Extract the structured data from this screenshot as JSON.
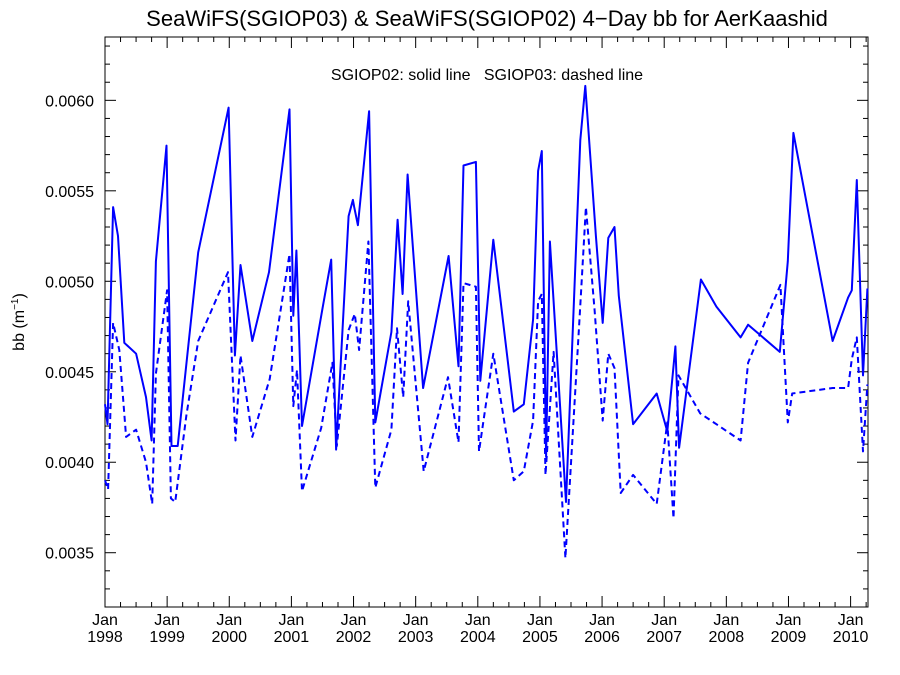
{
  "chart_data": {
    "type": "line",
    "title": "SeaWiFS(SGIOP03) & SeaWiFS(SGIOP02) 4−Day bb for AerKaashid",
    "annotation": "SGIOP02: solid line   SGIOP03: dashed line",
    "ylabel_main": "bb (m",
    "ylabel_sup": "−1",
    "ylabel_close": ")",
    "xlim": [
      1998.0,
      2010.28
    ],
    "ylim": [
      0.0032,
      0.00635
    ],
    "x_ticks": [
      {
        "value": 1998,
        "month": "Jan",
        "year": "1998"
      },
      {
        "value": 1999,
        "month": "Jan",
        "year": "1999"
      },
      {
        "value": 2000,
        "month": "Jan",
        "year": "2000"
      },
      {
        "value": 2001,
        "month": "Jan",
        "year": "2001"
      },
      {
        "value": 2002,
        "month": "Jan",
        "year": "2002"
      },
      {
        "value": 2003,
        "month": "Jan",
        "year": "2003"
      },
      {
        "value": 2004,
        "month": "Jan",
        "year": "2004"
      },
      {
        "value": 2005,
        "month": "Jan",
        "year": "2005"
      },
      {
        "value": 2006,
        "month": "Jan",
        "year": "2006"
      },
      {
        "value": 2007,
        "month": "Jan",
        "year": "2007"
      },
      {
        "value": 2008,
        "month": "Jan",
        "year": "2008"
      },
      {
        "value": 2009,
        "month": "Jan",
        "year": "2009"
      },
      {
        "value": 2010,
        "month": "Jan",
        "year": "2010"
      }
    ],
    "y_ticks": [
      {
        "value": 0.0035,
        "label": "0.0035"
      },
      {
        "value": 0.004,
        "label": "0.0040"
      },
      {
        "value": 0.0045,
        "label": "0.0045"
      },
      {
        "value": 0.005,
        "label": "0.0050"
      },
      {
        "value": 0.0055,
        "label": "0.0055"
      },
      {
        "value": 0.006,
        "label": "0.0060"
      }
    ],
    "line_color": "#0000ff",
    "series": [
      {
        "style": "solid",
        "x": [
          1998.0,
          1998.04,
          1998.13,
          1998.21,
          1998.31,
          1998.5,
          1998.66,
          1998.75,
          1998.82,
          1998.99,
          1999.07,
          1999.17,
          1999.5,
          1999.99,
          2000.09,
          2000.18,
          2000.37,
          2000.64,
          2000.97,
          2001.03,
          2001.08,
          2001.17,
          2001.5,
          2001.64,
          2001.72,
          2001.92,
          2001.99,
          2002.01,
          2002.07,
          2002.25,
          2002.35,
          2002.61,
          2002.71,
          2002.79,
          2002.87,
          2003.12,
          2003.53,
          2003.69,
          2003.77,
          2003.97,
          2004.04,
          2004.25,
          2004.58,
          2004.74,
          2004.89,
          2004.97,
          2005.03,
          2005.1,
          2005.16,
          2005.42,
          2005.65,
          2005.73,
          2005.9,
          2006.01,
          2006.1,
          2006.2,
          2006.27,
          2006.5,
          2006.88,
          2007.05,
          2007.18,
          2007.24,
          2007.59,
          2007.84,
          2008.23,
          2008.35,
          2008.86,
          2008.99,
          2009.08,
          2009.71,
          2009.96,
          2010.02,
          2010.1,
          2010.2,
          2010.27
        ],
        "values": [
          0.00432,
          0.00421,
          0.00541,
          0.00525,
          0.00466,
          0.0046,
          0.00436,
          0.00412,
          0.00511,
          0.00575,
          0.00409,
          0.00409,
          0.00516,
          0.00596,
          0.00459,
          0.00509,
          0.00467,
          0.00505,
          0.00595,
          0.00481,
          0.00517,
          0.0042,
          0.00485,
          0.00512,
          0.00407,
          0.00536,
          0.00545,
          0.00541,
          0.00531,
          0.00594,
          0.00422,
          0.00472,
          0.00534,
          0.00493,
          0.00559,
          0.00441,
          0.00514,
          0.00453,
          0.00564,
          0.00566,
          0.00445,
          0.00523,
          0.00428,
          0.00432,
          0.00479,
          0.00561,
          0.00572,
          0.00403,
          0.00522,
          0.00378,
          0.00578,
          0.00608,
          0.00525,
          0.00477,
          0.00524,
          0.0053,
          0.00492,
          0.00421,
          0.00438,
          0.00417,
          0.00464,
          0.00408,
          0.00501,
          0.00486,
          0.00469,
          0.00476,
          0.00461,
          0.00511,
          0.00582,
          0.00467,
          0.00491,
          0.00495,
          0.00556,
          0.00448,
          0.00496
        ]
      },
      {
        "style": "dashed",
        "x": [
          1998.0,
          1998.05,
          1998.13,
          1998.23,
          1998.34,
          1998.5,
          1998.66,
          1998.76,
          1998.82,
          1999.0,
          1999.06,
          1999.13,
          1999.31,
          1999.5,
          1999.98,
          2000.1,
          2000.18,
          2000.37,
          2000.65,
          2000.97,
          2001.03,
          2001.09,
          2001.17,
          2001.48,
          2001.66,
          2001.73,
          2001.92,
          2002.02,
          2002.09,
          2002.24,
          2002.35,
          2002.61,
          2002.7,
          2002.8,
          2002.88,
          2003.13,
          2003.52,
          2003.69,
          2003.77,
          2003.97,
          2004.02,
          2004.25,
          2004.58,
          2004.74,
          2004.89,
          2004.97,
          2005.03,
          2005.09,
          2005.22,
          2005.41,
          2005.64,
          2005.74,
          2005.88,
          2006.01,
          2006.1,
          2006.2,
          2006.3,
          2006.5,
          2006.88,
          2007.05,
          2007.15,
          2007.23,
          2007.58,
          2007.84,
          2008.23,
          2008.35,
          2008.87,
          2008.99,
          2009.06,
          2009.71,
          2009.96,
          2010.02,
          2010.1,
          2010.2,
          2010.27
        ],
        "values": [
          0.0039,
          0.00385,
          0.00477,
          0.00462,
          0.00414,
          0.00418,
          0.004,
          0.00377,
          0.00449,
          0.00495,
          0.0038,
          0.00378,
          0.00426,
          0.00467,
          0.00505,
          0.00412,
          0.00459,
          0.00414,
          0.00446,
          0.00515,
          0.00431,
          0.00451,
          0.00384,
          0.00419,
          0.00455,
          0.00409,
          0.00473,
          0.00482,
          0.00462,
          0.00522,
          0.00386,
          0.00418,
          0.00474,
          0.00436,
          0.00489,
          0.00395,
          0.00447,
          0.00411,
          0.00499,
          0.00497,
          0.00406,
          0.0046,
          0.0039,
          0.00395,
          0.00423,
          0.00489,
          0.00493,
          0.00393,
          0.00461,
          0.00347,
          0.00481,
          0.00541,
          0.00484,
          0.00423,
          0.0046,
          0.00452,
          0.00383,
          0.00393,
          0.00377,
          0.00422,
          0.00369,
          0.00448,
          0.00427,
          0.00421,
          0.00412,
          0.00455,
          0.00498,
          0.00422,
          0.00438,
          0.00441,
          0.00441,
          0.00457,
          0.00469,
          0.00406,
          0.00443
        ]
      }
    ]
  }
}
